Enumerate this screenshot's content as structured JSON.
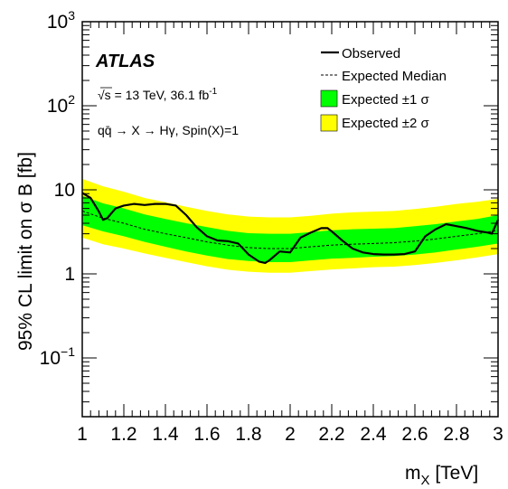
{
  "chart_data": {
    "type": "line",
    "experiment": "ATLAS",
    "info_energy": "√s = 13 TeV, 36.1 fb",
    "info_energy_sup": "-1",
    "info_process": "qq̄ → X → Hγ, Spin(X)=1",
    "ylabel": "95% CL limit on σ B [fb]",
    "xlabel_main": "m",
    "xlabel_sub": "X",
    "xlabel_unit": " [TeV]",
    "xlim": [
      1.0,
      3.0
    ],
    "ylim": [
      0.02,
      1000
    ],
    "yscale": "log",
    "x_ticks": [
      "1",
      "1.2",
      "1.4",
      "1.6",
      "1.8",
      "2",
      "2.2",
      "2.4",
      "2.6",
      "2.8",
      "3"
    ],
    "y_ticks": [
      {
        "value": 1000,
        "base": "10",
        "exp": "3"
      },
      {
        "value": 100,
        "base": "10",
        "exp": "2"
      },
      {
        "value": 10,
        "base": "10",
        "exp": ""
      },
      {
        "value": 1,
        "base": "1",
        "exp": ""
      },
      {
        "value": 0.1,
        "base": "10",
        "exp": "−1"
      }
    ],
    "legend": [
      {
        "name": "Observed",
        "style": "solid-line"
      },
      {
        "name": "Expected Median",
        "style": "dashed-line"
      },
      {
        "name": "Expected ±1 σ",
        "style": "green-box"
      },
      {
        "name": "Expected ±2 σ",
        "style": "yellow-box"
      }
    ],
    "legend_position": "top-right",
    "colors": {
      "band1": "#00ff00",
      "band2": "#ffff00",
      "line": "#000000"
    },
    "x": [
      1.0,
      1.1,
      1.2,
      1.3,
      1.4,
      1.5,
      1.6,
      1.7,
      1.8,
      1.9,
      2.0,
      2.1,
      2.2,
      2.3,
      2.4,
      2.5,
      2.6,
      2.7,
      2.8,
      2.9,
      3.0
    ],
    "expected_median": [
      5.6,
      4.6,
      4.0,
      3.4,
      3.0,
      2.7,
      2.4,
      2.2,
      2.05,
      2.0,
      2.0,
      2.1,
      2.2,
      2.25,
      2.3,
      2.35,
      2.45,
      2.6,
      2.8,
      3.0,
      3.3
    ],
    "band_1sigma_low": [
      3.8,
      3.2,
      2.8,
      2.4,
      2.1,
      1.85,
      1.65,
      1.5,
      1.42,
      1.38,
      1.38,
      1.45,
      1.52,
      1.55,
      1.6,
      1.63,
      1.7,
      1.8,
      1.95,
      2.1,
      2.3
    ],
    "band_1sigma_high": [
      8.5,
      6.9,
      6.0,
      5.1,
      4.5,
      4.0,
      3.6,
      3.25,
      3.05,
      3.0,
      3.0,
      3.15,
      3.3,
      3.4,
      3.45,
      3.5,
      3.7,
      3.9,
      4.2,
      4.5,
      5.0
    ],
    "band_2sigma_low": [
      2.7,
      2.25,
      2.0,
      1.75,
      1.55,
      1.38,
      1.23,
      1.12,
      1.06,
      1.03,
      1.03,
      1.08,
      1.13,
      1.16,
      1.2,
      1.22,
      1.27,
      1.35,
      1.45,
      1.57,
      1.72
    ],
    "band_2sigma_high": [
      13.5,
      11.0,
      9.5,
      8.0,
      7.1,
      6.3,
      5.6,
      5.1,
      4.8,
      4.7,
      4.7,
      4.9,
      5.2,
      5.4,
      5.5,
      5.6,
      5.9,
      6.3,
      6.8,
      7.2,
      7.8
    ],
    "observed_x": [
      1.0,
      1.04,
      1.08,
      1.1,
      1.12,
      1.16,
      1.2,
      1.25,
      1.3,
      1.35,
      1.4,
      1.45,
      1.5,
      1.55,
      1.6,
      1.65,
      1.7,
      1.75,
      1.8,
      1.85,
      1.88,
      1.9,
      1.95,
      2.0,
      2.05,
      2.1,
      2.15,
      2.18,
      2.2,
      2.25,
      2.3,
      2.35,
      2.4,
      2.45,
      2.5,
      2.55,
      2.6,
      2.65,
      2.7,
      2.75,
      2.8,
      2.85,
      2.9,
      2.95,
      2.97,
      3.0
    ],
    "observed": [
      9.2,
      8.0,
      5.5,
      4.4,
      4.6,
      6.0,
      6.5,
      6.8,
      6.6,
      6.8,
      6.8,
      6.5,
      5.0,
      3.6,
      2.8,
      2.5,
      2.45,
      2.3,
      1.7,
      1.4,
      1.35,
      1.45,
      1.85,
      1.8,
      2.7,
      3.1,
      3.5,
      3.5,
      3.2,
      2.5,
      2.0,
      1.8,
      1.72,
      1.7,
      1.7,
      1.72,
      1.85,
      2.8,
      3.4,
      3.9,
      3.7,
      3.5,
      3.25,
      3.1,
      3.0,
      4.4
    ]
  }
}
